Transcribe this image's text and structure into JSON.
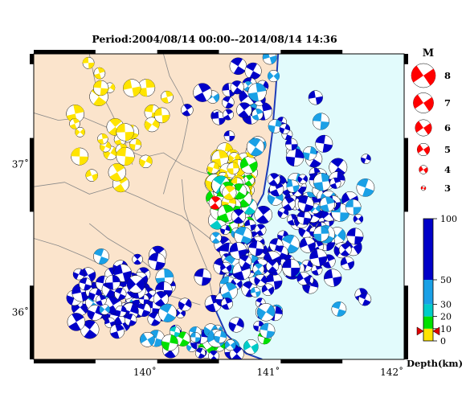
{
  "title": "Period:2004/08/14 00:00--2014/08/14 14:36",
  "map": {
    "lon_range": [
      139.1,
      142.1
    ],
    "lat_range": [
      35.68,
      37.75
    ],
    "lon_ticks": [
      {
        "value": 140,
        "label": "140˚"
      },
      {
        "value": 141,
        "label": "141˚"
      },
      {
        "value": 142,
        "label": "142˚"
      }
    ],
    "lat_ticks": [
      {
        "value": 37,
        "label": "37˚"
      },
      {
        "value": 36,
        "label": "36˚"
      }
    ],
    "colors": {
      "land": "#fbe4cc",
      "sea": "#e2fbfc",
      "boundary": "#888888",
      "coast": "#1d3cb8"
    },
    "epicenter": {
      "lon": 140.57,
      "lat": 36.74,
      "color": "#ff0000"
    }
  },
  "magnitude_legend": {
    "title": "M",
    "items": [
      {
        "label": "8",
        "mag": 8
      },
      {
        "label": "7",
        "mag": 7
      },
      {
        "label": "6",
        "mag": 6
      },
      {
        "label": "5",
        "mag": 5
      },
      {
        "label": "4",
        "mag": 4
      },
      {
        "label": "3",
        "mag": 3
      }
    ],
    "color": "#ff0000"
  },
  "depth_scale": {
    "label": "Depth(km)",
    "ticks": [
      {
        "value": 100,
        "label": "100"
      },
      {
        "value": 50,
        "label": "50"
      },
      {
        "value": 30,
        "label": "30"
      },
      {
        "value": 20,
        "label": "20"
      },
      {
        "value": 10,
        "label": "10"
      },
      {
        "value": 0,
        "label": "0"
      }
    ],
    "bands": [
      {
        "from": 0,
        "to": 10,
        "color": "#ffe400"
      },
      {
        "from": 10,
        "to": 20,
        "color": "#00e000"
      },
      {
        "from": 20,
        "to": 30,
        "color": "#00ccc8"
      },
      {
        "from": 30,
        "to": 50,
        "color": "#1aa0e6"
      },
      {
        "from": 50,
        "to": 100,
        "color": "#0000c8"
      }
    ],
    "marker_depth": 8
  }
}
